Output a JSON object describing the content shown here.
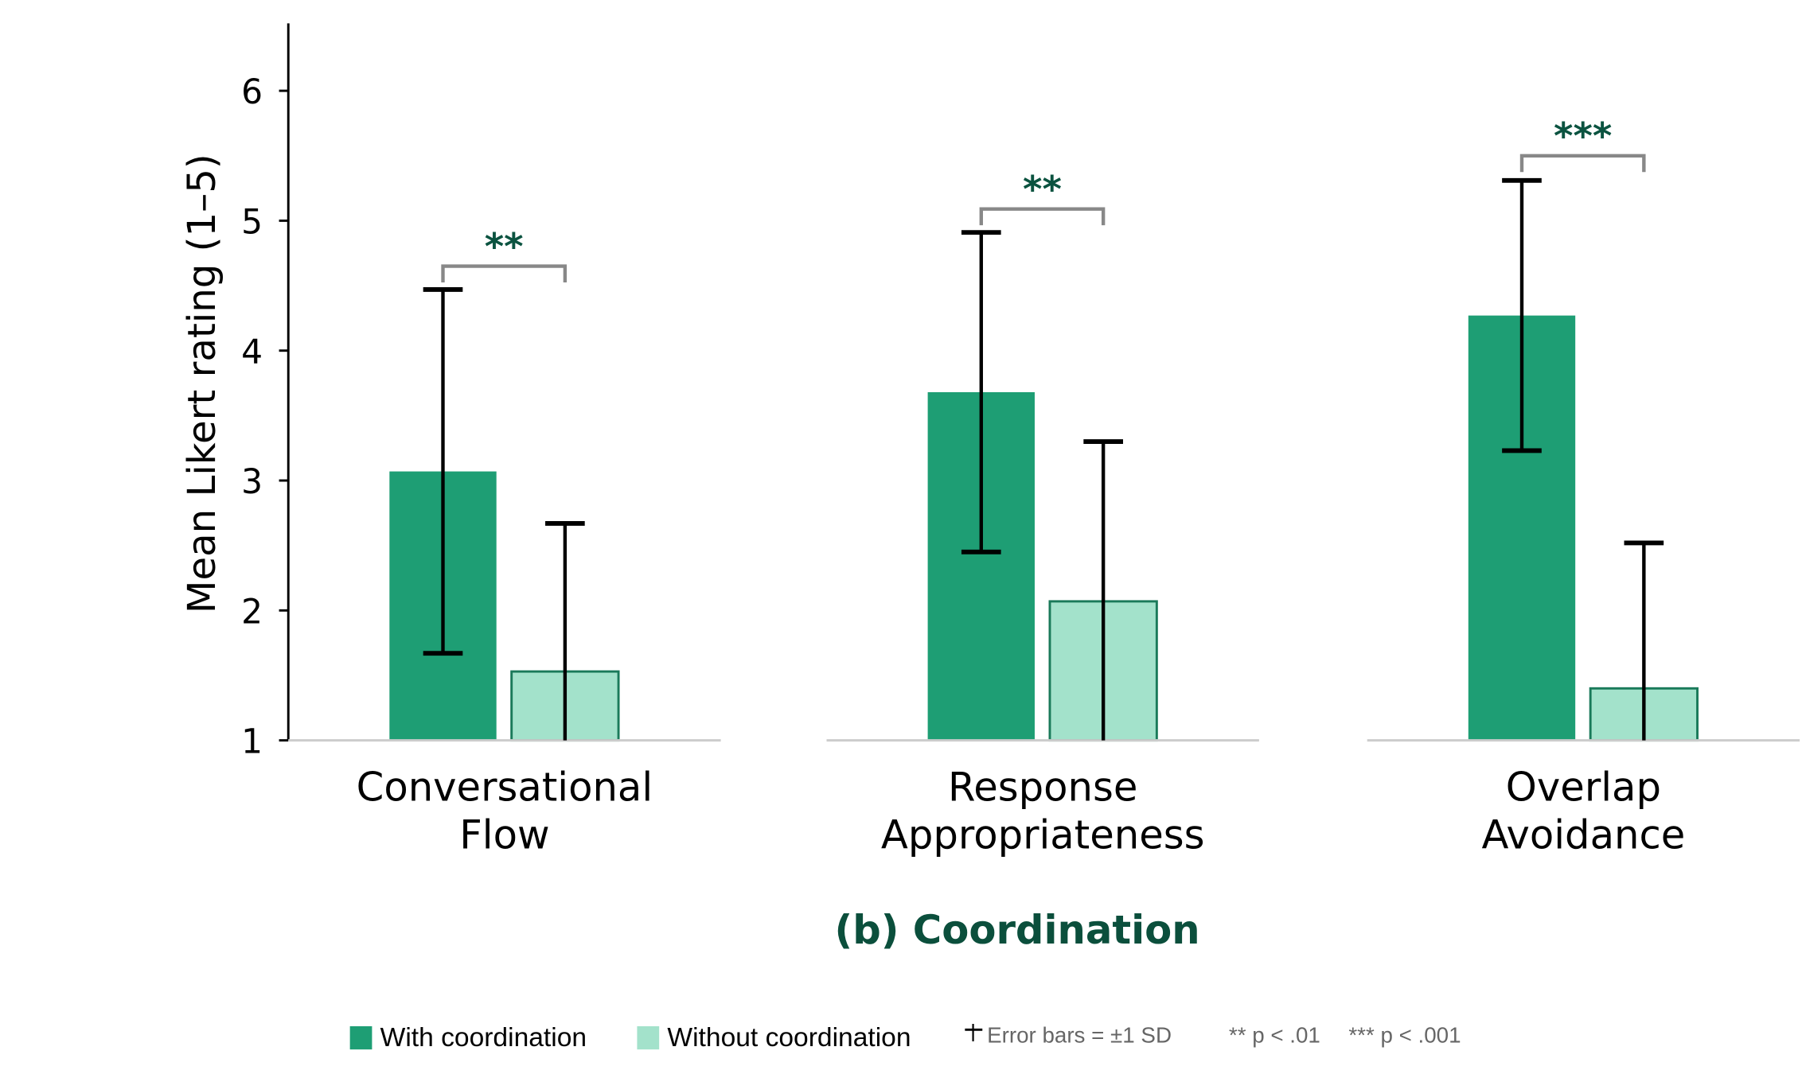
{
  "chart_data": {
    "type": "bar",
    "title": "(b) Coordination",
    "ylabel": "Mean Likert rating (1–5)",
    "xlabel": "",
    "ylim": [
      1,
      6.5
    ],
    "yticks": [
      1,
      2,
      3,
      4,
      5,
      6
    ],
    "grid": false,
    "categories": [
      [
        "Conversational",
        "Flow"
      ],
      [
        "Response",
        "Appropriateness"
      ],
      [
        "Overlap",
        "Avoidance"
      ]
    ],
    "series": [
      {
        "name": "With coordination",
        "values": [
          3.07,
          3.68,
          4.27
        ],
        "sd": [
          1.4,
          1.23,
          1.04
        ]
      },
      {
        "name": "Without coordination",
        "values": [
          1.53,
          2.07,
          1.4
        ],
        "sd": [
          1.14,
          1.23,
          1.12
        ]
      }
    ],
    "significance": [
      {
        "label": "**",
        "bracket_y": 4.65
      },
      {
        "label": "**",
        "bracket_y": 5.09
      },
      {
        "label": "***",
        "bracket_y": 5.5
      }
    ],
    "legend": {
      "placement": "bottom",
      "items": [
        "With coordination",
        "Without coordination"
      ],
      "error_note": "Error bars = ±1 SD",
      "sig_note_1": "** p < .01",
      "sig_note_2": "*** p < .001"
    },
    "colors": {
      "with": "#1e9e74",
      "without": "#a3e2cb",
      "without_edge": "#1a7a5a",
      "stars": "#0b5340",
      "title": "#0b4f3c",
      "bracket": "#888888",
      "baseline": "#cccccc"
    }
  }
}
